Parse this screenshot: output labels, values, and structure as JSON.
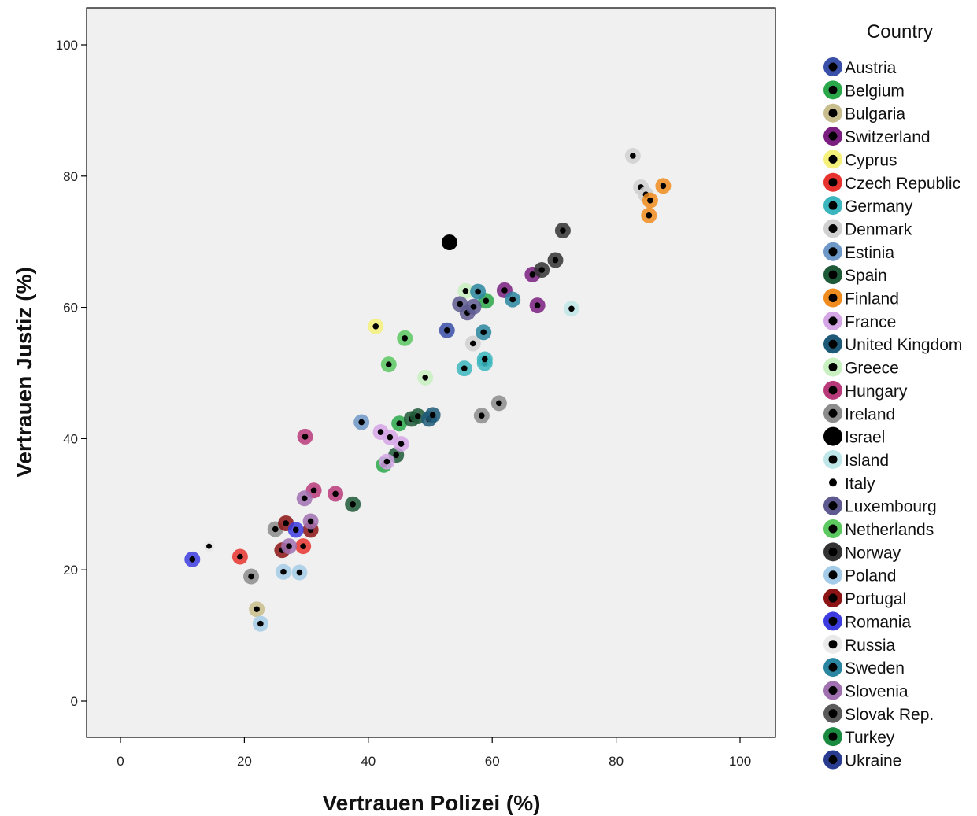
{
  "chart_data": {
    "type": "scatter",
    "xlabel": "Vertrauen Polizei (%)",
    "ylabel": "Vertrauen Justiz (%)",
    "xlim": [
      -5,
      105
    ],
    "ylim": [
      -5,
      106
    ],
    "xticks": [
      0,
      20,
      40,
      60,
      80,
      100
    ],
    "yticks": [
      0,
      20,
      40,
      60,
      80,
      100
    ],
    "grid": false,
    "plot_background": "#f0f0f0",
    "legend_title": "Country",
    "legend_position": "right",
    "series": [
      {
        "name": "Austria",
        "color": "#3a4fa8",
        "points": [
          [
            52.7,
            56.5
          ]
        ]
      },
      {
        "name": "Belgium",
        "color": "#2aa84a",
        "points": [
          [
            45,
            42.3
          ],
          [
            42.5,
            36
          ],
          [
            59,
            61
          ]
        ]
      },
      {
        "name": "Bulgaria",
        "color": "#c8bd8c",
        "points": [
          [
            22,
            14
          ]
        ]
      },
      {
        "name": "Switzerland",
        "color": "#7a1f80",
        "points": [
          [
            62,
            62.6
          ],
          [
            66.5,
            65
          ],
          [
            67.3,
            60.3
          ]
        ]
      },
      {
        "name": "Cyprus",
        "color": "#f5f07a",
        "points": [
          [
            41.2,
            57.1
          ]
        ]
      },
      {
        "name": "Czech Republic",
        "color": "#e8322e",
        "points": [
          [
            19.3,
            22
          ],
          [
            29.5,
            23.6
          ]
        ]
      },
      {
        "name": "Germany",
        "color": "#3cb6be",
        "points": [
          [
            55.5,
            50.7
          ],
          [
            58.8,
            51.5
          ],
          [
            58.8,
            52.1
          ]
        ]
      },
      {
        "name": "Denmark",
        "color": "#d0d0d0",
        "points": [
          [
            82.7,
            83.1
          ],
          [
            84,
            78.3
          ],
          [
            84.8,
            77.2
          ],
          [
            56.9,
            54.5
          ]
        ]
      },
      {
        "name": "Estinia",
        "color": "#6e98c8",
        "points": [
          [
            38.9,
            42.5
          ]
        ]
      },
      {
        "name": "Spain",
        "color": "#1f5a38",
        "points": [
          [
            37.5,
            30
          ],
          [
            44.5,
            37.5
          ],
          [
            47,
            43
          ],
          [
            48,
            43.4
          ]
        ]
      },
      {
        "name": "Finland",
        "color": "#f08c1e",
        "points": [
          [
            87.6,
            78.5
          ],
          [
            85.5,
            76.3
          ],
          [
            85.3,
            74
          ]
        ]
      },
      {
        "name": "France",
        "color": "#d5a6e6",
        "points": [
          [
            42,
            41
          ],
          [
            45.3,
            39.2
          ],
          [
            43,
            36.5
          ],
          [
            43.5,
            40.2
          ]
        ]
      },
      {
        "name": "United Kingdom",
        "color": "#1e5a78",
        "points": [
          [
            49.8,
            43
          ],
          [
            50.4,
            43.6
          ]
        ]
      },
      {
        "name": "Greece",
        "color": "#c8f0c0",
        "points": [
          [
            49.2,
            49.3
          ],
          [
            55.7,
            62.5
          ]
        ]
      },
      {
        "name": "Hungary",
        "color": "#b83a7a",
        "points": [
          [
            29.8,
            40.3
          ],
          [
            31.2,
            32.1
          ],
          [
            34.7,
            31.6
          ]
        ]
      },
      {
        "name": "Ireland",
        "color": "#8c8c8c",
        "points": [
          [
            21.1,
            19
          ],
          [
            58.3,
            43.5
          ],
          [
            61.1,
            45.4
          ],
          [
            25,
            26.2
          ]
        ]
      },
      {
        "name": "Israel",
        "color": "#000000",
        "points": [
          [
            53.1,
            69.9
          ]
        ]
      },
      {
        "name": "Island",
        "color": "#bfe6e8",
        "points": [
          [
            72.8,
            59.8
          ]
        ]
      },
      {
        "name": "Italy",
        "color": "#000000",
        "points": [
          [
            14.3,
            23.6
          ]
        ]
      },
      {
        "name": "Luxembourg",
        "color": "#5e5a90",
        "points": [
          [
            54.8,
            60.5
          ],
          [
            56,
            59.2
          ],
          [
            57,
            60.1
          ]
        ]
      },
      {
        "name": "Netherlands",
        "color": "#5cc860",
        "points": [
          [
            45.9,
            55.3
          ],
          [
            43.3,
            51.3
          ]
        ]
      },
      {
        "name": "Norway",
        "color": "#333333",
        "points": [
          [
            68,
            65.7
          ],
          [
            70.2,
            67.2
          ],
          [
            71.4,
            71.7
          ]
        ]
      },
      {
        "name": "Poland",
        "color": "#a4cce8",
        "points": [
          [
            26.3,
            19.7
          ],
          [
            28.9,
            19.6
          ],
          [
            22.6,
            11.8
          ]
        ]
      },
      {
        "name": "Portugal",
        "color": "#8c1414",
        "points": [
          [
            26.7,
            27.1
          ],
          [
            30.7,
            26.1
          ],
          [
            26.1,
            23
          ]
        ]
      },
      {
        "name": "Romania",
        "color": "#3c3ce0",
        "points": [
          [
            28.3,
            26.1
          ],
          [
            11.6,
            21.6
          ]
        ]
      },
      {
        "name": "Russia",
        "color": "#eaeaea",
        "points": []
      },
      {
        "name": "Sweden",
        "color": "#2a86a0",
        "points": [
          [
            57.7,
            62.4
          ],
          [
            63.3,
            61.2
          ],
          [
            58.6,
            56.2
          ]
        ]
      },
      {
        "name": "Slovenia",
        "color": "#a070b0",
        "points": [
          [
            29.7,
            30.9
          ],
          [
            30.7,
            27.4
          ],
          [
            27.2,
            23.6
          ]
        ]
      },
      {
        "name": "Slovak Rep.",
        "color": "#5a5a5a",
        "points": []
      },
      {
        "name": "Turkey",
        "color": "#1a8a40",
        "points": []
      },
      {
        "name": "Ukraine",
        "color": "#2a3c90",
        "points": []
      }
    ]
  }
}
